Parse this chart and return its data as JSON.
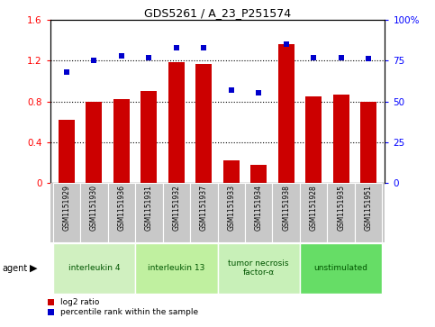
{
  "title": "GDS5261 / A_23_P251574",
  "samples": [
    "GSM1151929",
    "GSM1151930",
    "GSM1151936",
    "GSM1151931",
    "GSM1151932",
    "GSM1151937",
    "GSM1151933",
    "GSM1151934",
    "GSM1151938",
    "GSM1151928",
    "GSM1151935",
    "GSM1151951"
  ],
  "log2_ratio": [
    0.62,
    0.8,
    0.82,
    0.9,
    1.18,
    1.17,
    0.22,
    0.18,
    1.36,
    0.85,
    0.87,
    0.8
  ],
  "percentile": [
    68,
    75,
    78,
    77,
    83,
    83,
    57,
    55,
    85,
    77,
    77,
    76
  ],
  "groups": [
    {
      "label": "interleukin 4",
      "start": 0,
      "end": 3,
      "color": "#d0f0c0"
    },
    {
      "label": "interleukin 13",
      "start": 3,
      "end": 6,
      "color": "#c0f0a0"
    },
    {
      "label": "tumor necrosis\nfactor-α",
      "start": 6,
      "end": 9,
      "color": "#c8f0b8"
    },
    {
      "label": "unstimulated",
      "start": 9,
      "end": 12,
      "color": "#66dd66"
    }
  ],
  "bar_color": "#cc0000",
  "dot_color": "#0000cc",
  "left_ylim": [
    0,
    1.6
  ],
  "right_ylim": [
    0,
    100
  ],
  "left_yticks": [
    0,
    0.4,
    0.8,
    1.2,
    1.6
  ],
  "right_yticks": [
    0,
    25,
    50,
    75,
    100
  ],
  "left_yticklabels": [
    "0",
    "0.4",
    "0.8",
    "1.2",
    "1.6"
  ],
  "right_yticklabels": [
    "0",
    "25",
    "50",
    "75",
    "100%"
  ],
  "dotted_lines": [
    0.4,
    0.8,
    1.2
  ],
  "label_bg_color": "#c8c8c8",
  "label_edge_color": "#ffffff"
}
